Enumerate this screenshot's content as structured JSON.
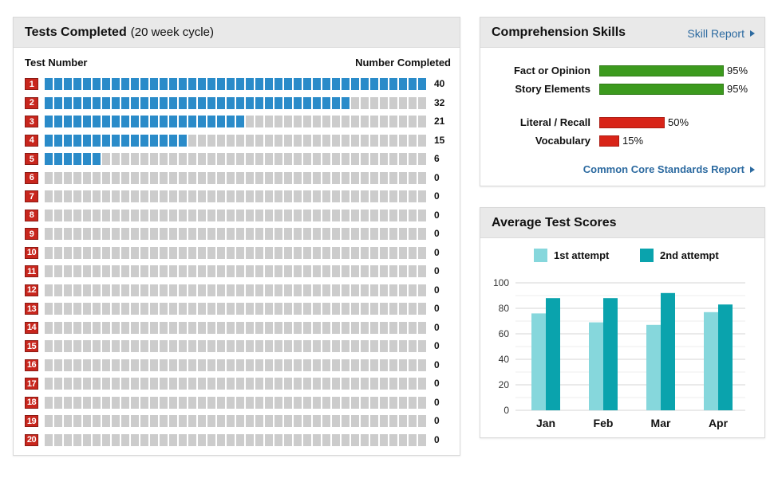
{
  "tests_panel": {
    "title": "Tests Completed",
    "subtitle": "(20 week cycle)",
    "col_test_number": "Test Number",
    "col_number_completed": "Number Completed",
    "max": 40,
    "rows": [
      {
        "label": "1",
        "value": 40
      },
      {
        "label": "2",
        "value": 32
      },
      {
        "label": "3",
        "value": 21
      },
      {
        "label": "4",
        "value": 15
      },
      {
        "label": "5",
        "value": 6
      },
      {
        "label": "6",
        "value": 0
      },
      {
        "label": "7",
        "value": 0
      },
      {
        "label": "8",
        "value": 0
      },
      {
        "label": "9",
        "value": 0
      },
      {
        "label": "10",
        "value": 0
      },
      {
        "label": "11",
        "value": 0
      },
      {
        "label": "12",
        "value": 0
      },
      {
        "label": "13",
        "value": 0
      },
      {
        "label": "14",
        "value": 0
      },
      {
        "label": "15",
        "value": 0
      },
      {
        "label": "16",
        "value": 0
      },
      {
        "label": "17",
        "value": 0
      },
      {
        "label": "18",
        "value": 0
      },
      {
        "label": "19",
        "value": 0
      },
      {
        "label": "20",
        "value": 0
      }
    ],
    "colors": {
      "filled": "#2a8bc9",
      "empty": "#cccccc",
      "badge": "#c8261d"
    }
  },
  "comprehension_panel": {
    "title": "Comprehension Skills",
    "skill_report_link": "Skill Report",
    "ccss_link": "Common Core Standards Report",
    "skills": [
      {
        "label": "Fact or Opinion",
        "value": 95,
        "pct_text": "95%",
        "status": "good"
      },
      {
        "label": "Story Elements",
        "value": 95,
        "pct_text": "95%",
        "status": "good"
      },
      {
        "label": "Literal / Recall",
        "value": 50,
        "pct_text": "50%",
        "status": "bad"
      },
      {
        "label": "Vocabulary",
        "value": 15,
        "pct_text": "15%",
        "status": "bad"
      }
    ],
    "colors": {
      "good": "#3c9a1e",
      "bad": "#d82418",
      "link": "#2c6aa0"
    }
  },
  "chart_data": [
    {
      "type": "bar",
      "categories": [
        "Jan",
        "Feb",
        "Mar",
        "Apr"
      ],
      "series": [
        {
          "name": "1st attempt",
          "values": [
            76,
            69,
            67,
            77
          ],
          "color": "#86d7dc"
        },
        {
          "name": "2nd attempt",
          "values": [
            88,
            88,
            92,
            83
          ],
          "color": "#0aa3ad"
        }
      ],
      "title": "Average Test Scores",
      "ylim": [
        0,
        100
      ],
      "yticks": [
        "0",
        "20",
        "40",
        "60",
        "80",
        "100"
      ],
      "grid": true,
      "legend": "top"
    }
  ]
}
